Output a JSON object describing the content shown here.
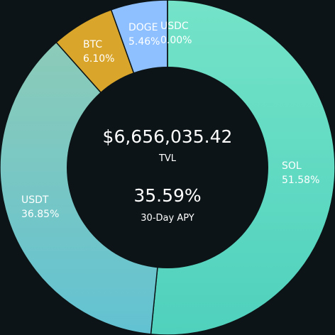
{
  "colors": {
    "background": "#0c1417",
    "center": "#0c1417",
    "separator": "#0c1417"
  },
  "center": {
    "tvl_value": "$6,656,035.42",
    "tvl_label": "TVL",
    "apy_value": "35.59%",
    "apy_label": "30-Day APY"
  },
  "chart_data": {
    "type": "pie",
    "variant": "donut",
    "slices": [
      {
        "name": "SOL",
        "value": 51.58,
        "label_value": "51.58%",
        "color_start": "#74e3c8",
        "color_end": "#4fd1bd",
        "label_pos": "right"
      },
      {
        "name": "USDT",
        "value": 36.85,
        "label_value": "36.85%",
        "color_start": "#8ccbb8",
        "color_end": "#62c2d2",
        "label_pos": "left"
      },
      {
        "name": "BTC",
        "value": 6.1,
        "label_value": "6.10%",
        "color_start": "#d9a52a",
        "color_end": "#d9a52a",
        "label_pos": "top-left"
      },
      {
        "name": "DOGE",
        "value": 5.46,
        "label_value": "5.46%",
        "color_start": "#8ec0ff",
        "color_end": "#8ec0ff",
        "label_pos": "top"
      },
      {
        "name": "USDC",
        "value": 0.0,
        "label_value": "0.00%",
        "color_start": "#2f8ae6",
        "color_end": "#2f8ae6",
        "label_pos": "top"
      }
    ]
  }
}
